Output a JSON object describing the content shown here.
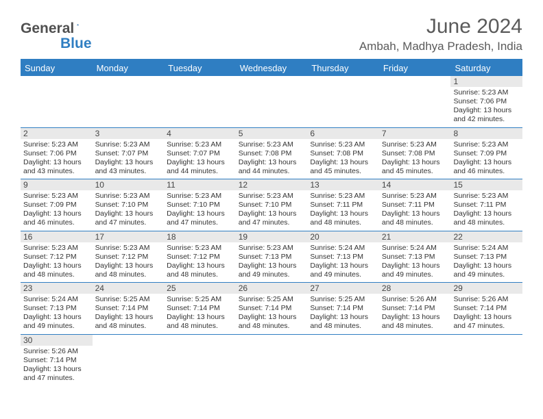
{
  "logo": {
    "general": "General",
    "blue": "Blue"
  },
  "title": "June 2024",
  "location": "Ambah, Madhya Pradesh, India",
  "colors": {
    "accent": "#2f7ec2",
    "dayband": "#e9e9e9",
    "text": "#333333",
    "headerText": "#5a5a5a"
  },
  "dayHeaders": [
    "Sunday",
    "Monday",
    "Tuesday",
    "Wednesday",
    "Thursday",
    "Friday",
    "Saturday"
  ],
  "weeks": [
    [
      null,
      null,
      null,
      null,
      null,
      null,
      {
        "n": "1",
        "rise": "5:23 AM",
        "set": "7:06 PM",
        "dl": "13 hours and 42 minutes."
      }
    ],
    [
      {
        "n": "2",
        "rise": "5:23 AM",
        "set": "7:06 PM",
        "dl": "13 hours and 43 minutes."
      },
      {
        "n": "3",
        "rise": "5:23 AM",
        "set": "7:07 PM",
        "dl": "13 hours and 43 minutes."
      },
      {
        "n": "4",
        "rise": "5:23 AM",
        "set": "7:07 PM",
        "dl": "13 hours and 44 minutes."
      },
      {
        "n": "5",
        "rise": "5:23 AM",
        "set": "7:08 PM",
        "dl": "13 hours and 44 minutes."
      },
      {
        "n": "6",
        "rise": "5:23 AM",
        "set": "7:08 PM",
        "dl": "13 hours and 45 minutes."
      },
      {
        "n": "7",
        "rise": "5:23 AM",
        "set": "7:08 PM",
        "dl": "13 hours and 45 minutes."
      },
      {
        "n": "8",
        "rise": "5:23 AM",
        "set": "7:09 PM",
        "dl": "13 hours and 46 minutes."
      }
    ],
    [
      {
        "n": "9",
        "rise": "5:23 AM",
        "set": "7:09 PM",
        "dl": "13 hours and 46 minutes."
      },
      {
        "n": "10",
        "rise": "5:23 AM",
        "set": "7:10 PM",
        "dl": "13 hours and 47 minutes."
      },
      {
        "n": "11",
        "rise": "5:23 AM",
        "set": "7:10 PM",
        "dl": "13 hours and 47 minutes."
      },
      {
        "n": "12",
        "rise": "5:23 AM",
        "set": "7:10 PM",
        "dl": "13 hours and 47 minutes."
      },
      {
        "n": "13",
        "rise": "5:23 AM",
        "set": "7:11 PM",
        "dl": "13 hours and 48 minutes."
      },
      {
        "n": "14",
        "rise": "5:23 AM",
        "set": "7:11 PM",
        "dl": "13 hours and 48 minutes."
      },
      {
        "n": "15",
        "rise": "5:23 AM",
        "set": "7:11 PM",
        "dl": "13 hours and 48 minutes."
      }
    ],
    [
      {
        "n": "16",
        "rise": "5:23 AM",
        "set": "7:12 PM",
        "dl": "13 hours and 48 minutes."
      },
      {
        "n": "17",
        "rise": "5:23 AM",
        "set": "7:12 PM",
        "dl": "13 hours and 48 minutes."
      },
      {
        "n": "18",
        "rise": "5:23 AM",
        "set": "7:12 PM",
        "dl": "13 hours and 48 minutes."
      },
      {
        "n": "19",
        "rise": "5:23 AM",
        "set": "7:13 PM",
        "dl": "13 hours and 49 minutes."
      },
      {
        "n": "20",
        "rise": "5:24 AM",
        "set": "7:13 PM",
        "dl": "13 hours and 49 minutes."
      },
      {
        "n": "21",
        "rise": "5:24 AM",
        "set": "7:13 PM",
        "dl": "13 hours and 49 minutes."
      },
      {
        "n": "22",
        "rise": "5:24 AM",
        "set": "7:13 PM",
        "dl": "13 hours and 49 minutes."
      }
    ],
    [
      {
        "n": "23",
        "rise": "5:24 AM",
        "set": "7:13 PM",
        "dl": "13 hours and 49 minutes."
      },
      {
        "n": "24",
        "rise": "5:25 AM",
        "set": "7:14 PM",
        "dl": "13 hours and 48 minutes."
      },
      {
        "n": "25",
        "rise": "5:25 AM",
        "set": "7:14 PM",
        "dl": "13 hours and 48 minutes."
      },
      {
        "n": "26",
        "rise": "5:25 AM",
        "set": "7:14 PM",
        "dl": "13 hours and 48 minutes."
      },
      {
        "n": "27",
        "rise": "5:25 AM",
        "set": "7:14 PM",
        "dl": "13 hours and 48 minutes."
      },
      {
        "n": "28",
        "rise": "5:26 AM",
        "set": "7:14 PM",
        "dl": "13 hours and 48 minutes."
      },
      {
        "n": "29",
        "rise": "5:26 AM",
        "set": "7:14 PM",
        "dl": "13 hours and 47 minutes."
      }
    ],
    [
      {
        "n": "30",
        "rise": "5:26 AM",
        "set": "7:14 PM",
        "dl": "13 hours and 47 minutes."
      },
      null,
      null,
      null,
      null,
      null,
      null
    ]
  ],
  "labels": {
    "sunrise": "Sunrise:",
    "sunset": "Sunset:",
    "daylight": "Daylight:"
  }
}
